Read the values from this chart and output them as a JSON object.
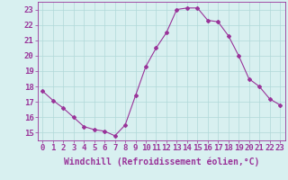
{
  "x": [
    0,
    1,
    2,
    3,
    4,
    5,
    6,
    7,
    8,
    9,
    10,
    11,
    12,
    13,
    14,
    15,
    16,
    17,
    18,
    19,
    20,
    21,
    22,
    23
  ],
  "y": [
    17.7,
    17.1,
    16.6,
    16.0,
    15.4,
    15.2,
    15.1,
    14.8,
    15.5,
    17.4,
    19.3,
    20.5,
    21.5,
    23.0,
    23.1,
    23.1,
    22.3,
    22.2,
    21.3,
    20.0,
    18.5,
    18.0,
    17.2,
    16.8
  ],
  "line_color": "#993399",
  "marker": "D",
  "marker_size": 2,
  "xlabel": "Windchill (Refroidissement éolien,°C)",
  "xlabel_fontsize": 7,
  "yticks": [
    15,
    16,
    17,
    18,
    19,
    20,
    21,
    22,
    23
  ],
  "xlim": [
    -0.5,
    23.5
  ],
  "ylim": [
    14.5,
    23.5
  ],
  "background_color": "#d8f0f0",
  "grid_color": "#b0d8d8",
  "tick_color": "#993399",
  "tick_fontsize": 6.5,
  "fig_width": 3.2,
  "fig_height": 2.0,
  "dpi": 100
}
